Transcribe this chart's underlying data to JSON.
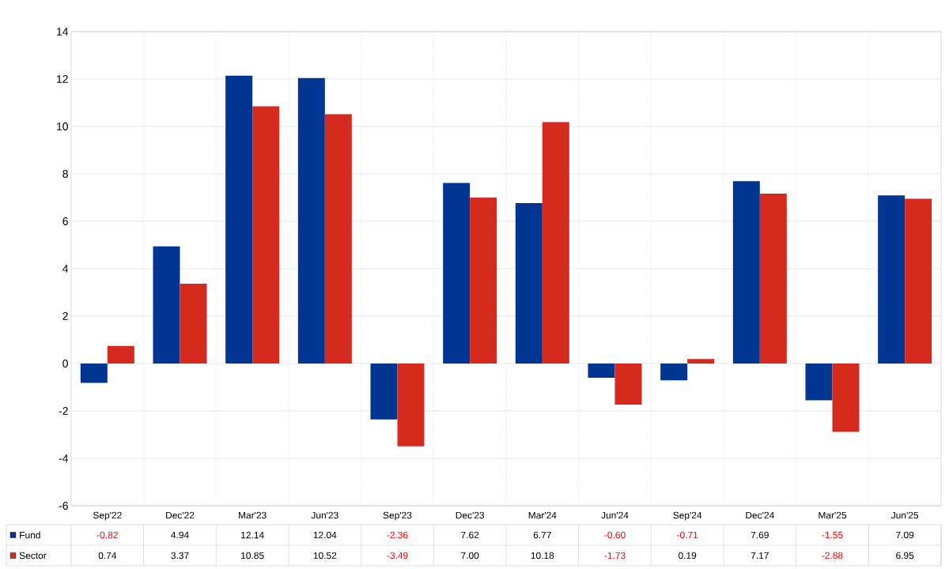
{
  "chart_data": {
    "type": "bar",
    "categories": [
      "Sep'22",
      "Dec'22",
      "Mar'23",
      "Jun'23",
      "Sep'23",
      "Dec'23",
      "Mar'24",
      "Jun'24",
      "Sep'24",
      "Dec'24",
      "Mar'25",
      "Jun'25"
    ],
    "series": [
      {
        "name": "Fund",
        "color": "#003591",
        "values": [
          -0.82,
          4.94,
          12.14,
          12.04,
          -2.36,
          7.62,
          6.77,
          -0.6,
          -0.71,
          7.69,
          -1.55,
          7.09
        ],
        "value_labels": [
          "-0.82",
          "4.94",
          "12.14",
          "12.04",
          "-2.36",
          "7.62",
          "6.77",
          "-0.60",
          "-0.71",
          "7.69",
          "-1.55",
          "7.09"
        ]
      },
      {
        "name": "Sector",
        "color": "#d52b1e",
        "values": [
          0.74,
          3.37,
          10.85,
          10.52,
          -3.49,
          7.0,
          10.18,
          -1.73,
          0.19,
          7.17,
          -2.88,
          6.95
        ],
        "value_labels": [
          "0.74",
          "3.37",
          "10.85",
          "10.52",
          "-3.49",
          "7.00",
          "10.18",
          "-1.73",
          "0.19",
          "7.17",
          "-2.88",
          "6.95"
        ]
      }
    ],
    "ylim": [
      -6,
      14
    ],
    "yticks": [
      -6,
      -4,
      -2,
      0,
      2,
      4,
      6,
      8,
      10,
      12,
      14
    ],
    "grid": true,
    "legend": "bottom"
  }
}
